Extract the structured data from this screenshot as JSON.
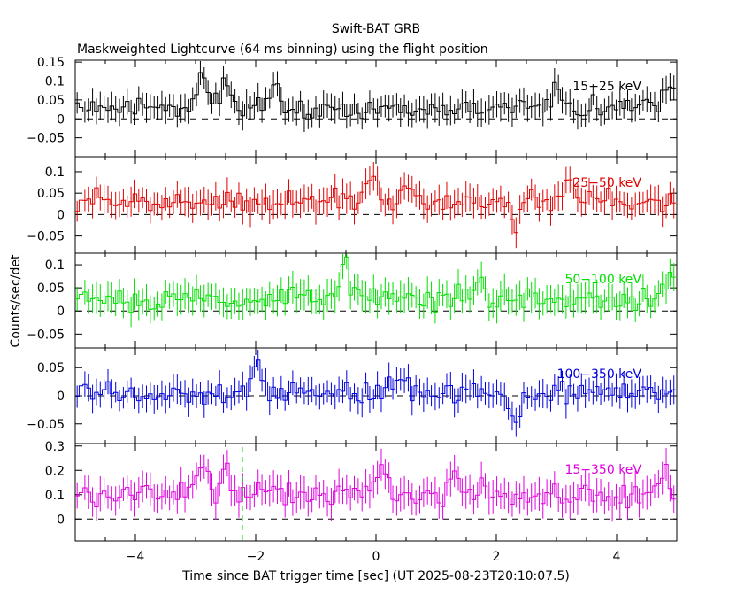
{
  "chart_data": {
    "type": "line",
    "title": "Swift-BAT GRB",
    "subtitle": "Maskweighted Lightcurve (64 ms binning) using the flight position",
    "xlabel": "Time since BAT trigger time [sec] (UT 2025-08-23T20:10:07.5)",
    "ylabel": "Counts/sec/det",
    "xlim": [
      -5,
      5
    ],
    "x_ticks": [
      -4,
      -2,
      0,
      2,
      4
    ],
    "x_tick_labels": [
      "−4",
      "−2",
      "0",
      "2",
      "4"
    ],
    "bin_width_s": 0.064,
    "trigger_marker_x": -2.22,
    "panels": [
      {
        "name": "15−25 keV",
        "color": "#000000",
        "ylim": [
          -0.1,
          0.155
        ],
        "yticks": [
          -0.05,
          0,
          0.05,
          0.1,
          0.15
        ],
        "ytick_labels": [
          "−0.05",
          "0",
          "0.05",
          "0.1",
          "0.15"
        ],
        "mean": 0.03,
        "amplitude": 0.035,
        "error": 0.033,
        "seed": 11,
        "features": [
          [
            -2.9,
            0.09
          ],
          [
            -2.5,
            0.08
          ],
          [
            -1.7,
            0.06
          ],
          [
            3.0,
            0.05
          ],
          [
            4.9,
            0.06
          ]
        ]
      },
      {
        "name": "25−50 keV",
        "color": "#e00000",
        "ylim": [
          -0.09,
          0.135
        ],
        "yticks": [
          -0.05,
          0,
          0.05,
          0.1
        ],
        "ytick_labels": [
          "−0.05",
          "0",
          "0.05",
          "0.1"
        ],
        "mean": 0.03,
        "amplitude": 0.03,
        "error": 0.03,
        "seed": 23,
        "features": [
          [
            -0.1,
            0.07
          ],
          [
            0.5,
            0.05
          ],
          [
            2.3,
            -0.06
          ],
          [
            3.2,
            0.06
          ]
        ]
      },
      {
        "name": "50−100 keV",
        "color": "#00e000",
        "ylim": [
          -0.08,
          0.125
        ],
        "yticks": [
          -0.05,
          0,
          0.05,
          0.1
        ],
        "ytick_labels": [
          "−0.05",
          "0",
          "0.05",
          "0.1"
        ],
        "mean": 0.025,
        "amplitude": 0.03,
        "error": 0.03,
        "seed": 37,
        "features": [
          [
            -0.5,
            0.08
          ],
          [
            1.7,
            0.05
          ],
          [
            4.9,
            0.07
          ]
        ]
      },
      {
        "name": "100−350 keV",
        "color": "#0000e0",
        "ylim": [
          -0.085,
          0.085
        ],
        "yticks": [
          -0.05,
          0,
          0.05
        ],
        "ytick_labels": [
          "−0.05",
          "0",
          "0.05"
        ],
        "mean": 0.005,
        "amplitude": 0.025,
        "error": 0.022,
        "seed": 53,
        "features": [
          [
            -2.0,
            0.05
          ],
          [
            0.4,
            0.04
          ],
          [
            2.3,
            -0.05
          ]
        ]
      },
      {
        "name": "15−350 keV",
        "color": "#e000e0",
        "ylim": [
          -0.09,
          0.31
        ],
        "yticks": [
          0,
          0.1,
          0.2,
          0.3
        ],
        "ytick_labels": [
          "0",
          "0.1",
          "0.2",
          "0.3"
        ],
        "mean": 0.1,
        "amplitude": 0.06,
        "error": 0.06,
        "seed": 71,
        "features": [
          [
            -2.9,
            0.12
          ],
          [
            -2.5,
            0.1
          ],
          [
            0.1,
            0.13
          ],
          [
            1.3,
            0.1
          ],
          [
            4.8,
            0.12
          ]
        ]
      }
    ]
  }
}
